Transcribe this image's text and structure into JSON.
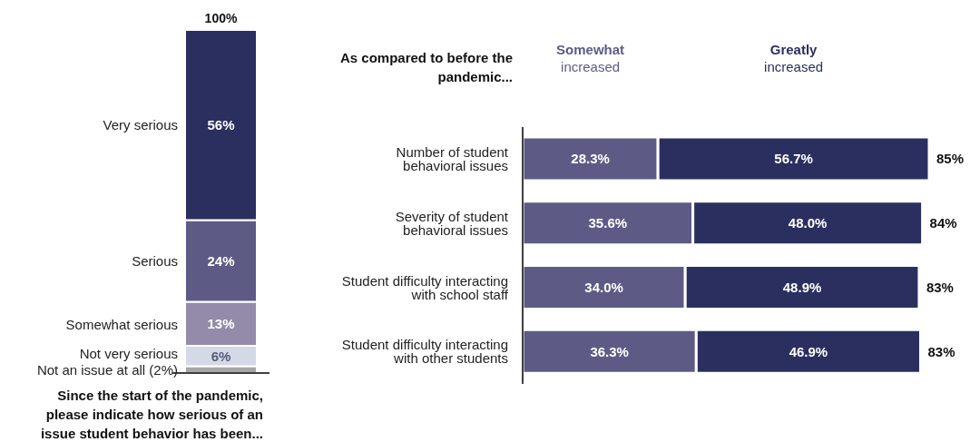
{
  "chart_data": [
    {
      "type": "bar",
      "stacked": true,
      "categories": [
        null
      ],
      "xlabel": "Since the start of the pandemic, please indicate how serious of an issue student behavior has been...",
      "legend": false,
      "tick_labels": false,
      "totals": [
        "100%"
      ],
      "series": [
        {
          "name": "Not an issue at all (2%)",
          "color": "#a6a6a6",
          "values": [
            2
          ],
          "value_labels": [
            null
          ]
        },
        {
          "name": "Not very serious",
          "color": "#d5d8e6",
          "values": [
            6
          ],
          "value_labels": [
            "6%"
          ]
        },
        {
          "name": "Somewhat serious",
          "color": "#938ba9",
          "values": [
            13
          ],
          "value_labels": [
            "13%"
          ]
        },
        {
          "name": "Serious",
          "color": "#5d5b85",
          "values": [
            24
          ],
          "value_labels": [
            "24%"
          ]
        },
        {
          "name": "Very serious",
          "color": "#2b2f5f",
          "values": [
            56
          ],
          "value_labels": [
            "56%"
          ]
        }
      ]
    },
    {
      "type": "bar",
      "stacked": true,
      "orientation": "horizontal",
      "title": "As compared to before the pandemic...",
      "legend": "top",
      "tick_labels": "y",
      "categories": [
        "Number of student behavioral issues",
        "Severity of student behavioral issues",
        "Student difficulty interacting with school staff",
        "Student difficulty interacting with other students"
      ],
      "totals": [
        "85%",
        "84%",
        "83%",
        "83%"
      ],
      "series": [
        {
          "name": "Somewhat increased",
          "color": "#5d5b85",
          "values": [
            28.3,
            35.6,
            34.0,
            36.3
          ],
          "value_labels": [
            "28.3%",
            "35.6%",
            "34.0%",
            "36.3%"
          ]
        },
        {
          "name": "Greatly increased",
          "color": "#2b2f5f",
          "values": [
            56.7,
            48.0,
            48.9,
            46.9
          ],
          "value_labels": [
            "56.7%",
            "48.0%",
            "48.9%",
            "46.9%"
          ]
        }
      ]
    }
  ]
}
